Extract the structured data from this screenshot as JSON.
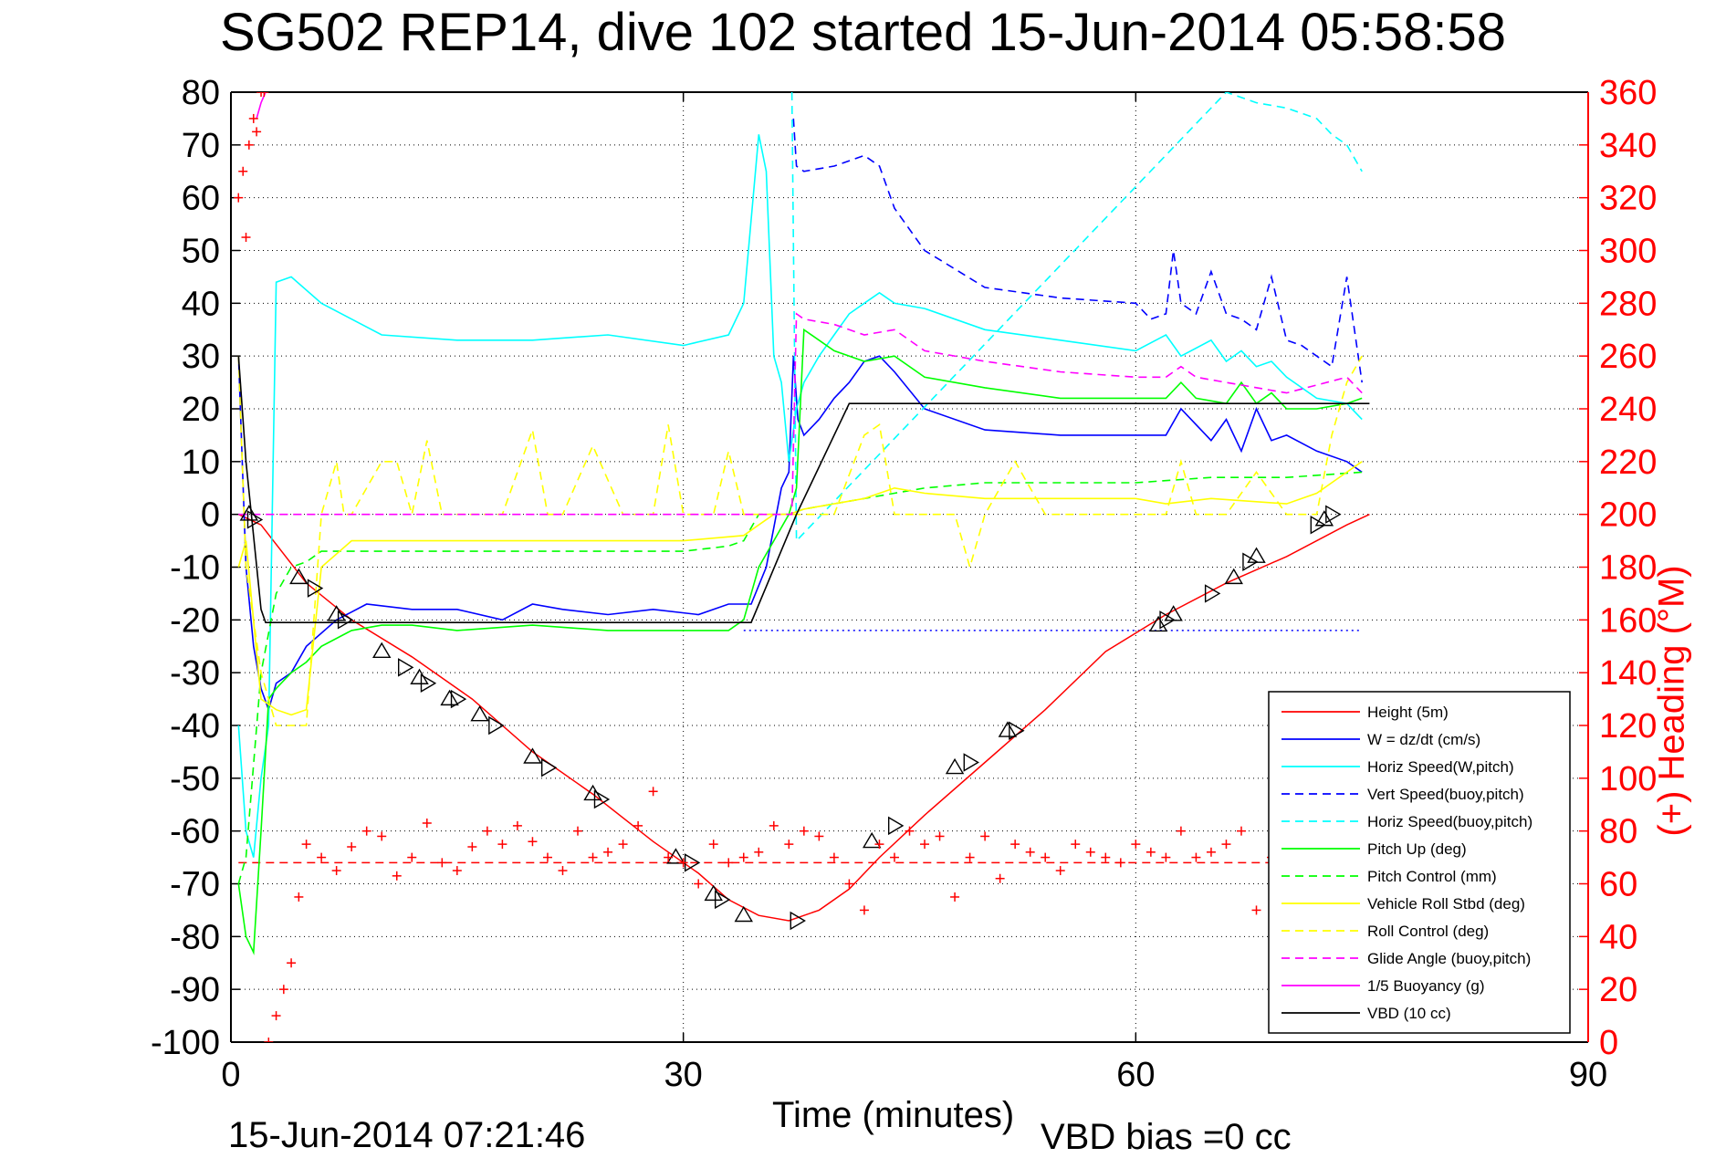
{
  "chart_data": {
    "type": "line",
    "title": "SG502 REP14, dive 102 started 15-Jun-2014 05:58:58",
    "xlabel": "Time (minutes)",
    "ylabel_left": "",
    "ylabel_right": "(+) Heading (°M)",
    "footer_left": "15-Jun-2014 07:21:46",
    "footer_right": "VBD bias =0 cc",
    "xlim": [
      0,
      90
    ],
    "ylim": [
      -100,
      80
    ],
    "y2lim": [
      0,
      360
    ],
    "xticks": [
      "0",
      "30",
      "60",
      "90"
    ],
    "xtick_values": [
      0,
      30,
      60,
      90
    ],
    "yticks": [
      "80",
      "70",
      "60",
      "50",
      "40",
      "30",
      "20",
      "10",
      "0",
      "-10",
      "-20",
      "-30",
      "-40",
      "-50",
      "-60",
      "-70",
      "-80",
      "-90",
      "-100"
    ],
    "ytick_values": [
      80,
      70,
      60,
      50,
      40,
      30,
      20,
      10,
      0,
      -10,
      -20,
      -30,
      -40,
      -50,
      -60,
      -70,
      -80,
      -90,
      -100
    ],
    "y2ticks": [
      "360",
      "340",
      "320",
      "300",
      "280",
      "260",
      "240",
      "220",
      "200",
      "180",
      "160",
      "140",
      "120",
      "100",
      "80",
      "60",
      "40",
      "20",
      "0"
    ],
    "y2tick_values": [
      360,
      340,
      320,
      300,
      280,
      260,
      240,
      220,
      200,
      180,
      160,
      140,
      120,
      100,
      80,
      60,
      40,
      20,
      0
    ],
    "grid": true,
    "legend_position": "bottom-right",
    "colors": {
      "axis": "#000000",
      "right_axis": "#ff0000",
      "grid": "#000000"
    },
    "series": [
      {
        "name": "Height (5m)",
        "color": "#ff0000",
        "dash": "solid",
        "x": [
          0.5,
          2,
          5,
          8,
          12,
          16,
          20,
          24,
          28,
          31,
          33,
          35,
          37,
          39,
          41,
          43,
          46,
          50,
          54,
          58,
          62,
          66,
          70,
          74,
          75.5
        ],
        "y": [
          0,
          -2,
          -13,
          -20,
          -27,
          -35,
          -45,
          -53,
          -62,
          -68,
          -73,
          -76,
          -77,
          -75,
          -71,
          -65,
          -57,
          -47,
          -37,
          -26,
          -19,
          -13,
          -8,
          -2,
          0
        ]
      },
      {
        "name": "W = dz/dt (cm/s)",
        "color": "#0000ff",
        "dash": "solid",
        "x": [
          0.5,
          1,
          1.5,
          2,
          2.5,
          3,
          4,
          5,
          7,
          9,
          12,
          15,
          18,
          20,
          22,
          25,
          28,
          31,
          33,
          34.5,
          35.5,
          36.5,
          37,
          37.3,
          37.6,
          38,
          39,
          40,
          41,
          42,
          43,
          44,
          46,
          50,
          55,
          60,
          62,
          63,
          65,
          66,
          67,
          68,
          69,
          70,
          72,
          74,
          75
        ],
        "y": [
          30,
          -10,
          -25,
          -33,
          -37,
          -32,
          -30,
          -25,
          -20,
          -17,
          -18,
          -18,
          -20,
          -17,
          -18,
          -19,
          -18,
          -19,
          -17,
          -17,
          -10,
          5,
          8,
          30,
          18,
          15,
          18,
          22,
          25,
          29,
          30,
          27,
          20,
          16,
          15,
          15,
          15,
          20,
          14,
          18,
          12,
          20,
          14,
          15,
          12,
          10,
          8
        ]
      },
      {
        "name": "Horiz Speed(W,pitch)",
        "color": "#00ffff",
        "dash": "solid",
        "x": [
          0.5,
          1,
          1.5,
          2,
          2.5,
          3,
          4,
          6,
          8,
          10,
          15,
          20,
          25,
          30,
          33,
          34,
          35,
          35.5,
          36,
          36.5,
          37,
          37.5,
          38,
          39,
          40,
          41,
          42,
          43,
          44,
          46,
          50,
          55,
          60,
          62,
          63,
          65,
          66,
          67,
          68,
          69,
          70,
          72,
          74,
          75
        ],
        "y": [
          -40,
          -60,
          -65,
          -50,
          -40,
          44,
          45,
          40,
          37,
          34,
          33,
          33,
          34,
          32,
          34,
          40,
          72,
          65,
          30,
          25,
          10,
          20,
          25,
          30,
          34,
          38,
          40,
          42,
          40,
          39,
          35,
          33,
          31,
          34,
          30,
          33,
          29,
          31,
          28,
          29,
          26,
          22,
          21,
          18
        ]
      },
      {
        "name": "Vert Speed(buoy,pitch)",
        "color": "#0000ff",
        "dash": "dashed",
        "x": [
          37.3,
          37.5,
          38,
          40,
          42,
          43,
          44,
          46,
          50,
          55,
          60,
          61,
          62,
          62.5,
          63,
          64,
          65,
          66,
          67,
          68,
          69,
          70,
          71,
          72,
          73,
          74,
          75
        ],
        "y": [
          75,
          66,
          65,
          66,
          68,
          66,
          58,
          50,
          43,
          41,
          40,
          37,
          38,
          50,
          40,
          38,
          46,
          38,
          37,
          35,
          45,
          33,
          32,
          30,
          28,
          45,
          25
        ]
      },
      {
        "name": "Horiz Speed(buoy,pitch)",
        "color": "#00ffff",
        "dash": "dashed",
        "x": [
          37.2,
          37.5,
          66,
          68,
          70,
          72,
          73,
          74,
          75
        ],
        "y": [
          80,
          -5,
          80,
          78,
          77,
          75,
          72,
          70,
          65
        ]
      },
      {
        "name": "Pitch Up (deg)",
        "color": "#00ff00",
        "dash": "solid",
        "x": [
          0.5,
          1,
          1.5,
          2,
          2.5,
          3,
          4,
          5,
          6,
          8,
          10,
          12,
          15,
          20,
          25,
          30,
          33,
          34,
          35,
          36,
          37,
          37.5,
          38,
          40,
          42,
          44,
          46,
          50,
          55,
          60,
          62,
          63,
          64,
          66,
          67,
          68,
          69,
          70,
          72,
          74,
          75
        ],
        "y": [
          -70,
          -80,
          -83,
          -60,
          -35,
          -33,
          -30,
          -28,
          -25,
          -22,
          -21,
          -21,
          -22,
          -21,
          -22,
          -22,
          -22,
          -20,
          -10,
          -5,
          0,
          5,
          35,
          31,
          29,
          30,
          26,
          24,
          22,
          22,
          22,
          25,
          22,
          21,
          25,
          21,
          23,
          20,
          20,
          21,
          22
        ]
      },
      {
        "name": "Pitch Control (mm)",
        "color": "#00ff00",
        "dash": "dashed",
        "x": [
          0.5,
          1,
          2,
          3,
          4,
          5,
          6,
          8,
          10,
          15,
          20,
          25,
          30,
          33,
          34,
          35,
          36,
          37,
          38,
          40,
          42,
          44,
          46,
          50,
          55,
          60,
          65,
          70,
          75
        ],
        "y": [
          -70,
          -65,
          -30,
          -15,
          -10,
          -9,
          -7,
          -7,
          -7,
          -7,
          -7,
          -7,
          -7,
          -6,
          -5,
          0,
          0,
          0,
          1,
          2,
          3,
          4,
          5,
          6,
          6,
          6,
          7,
          7,
          8
        ]
      },
      {
        "name": "Vehicle Roll Stbd (deg)",
        "color": "#ffff00",
        "dash": "solid",
        "x": [
          0.5,
          1,
          2,
          3,
          4,
          5,
          6,
          8,
          10,
          15,
          20,
          25,
          30,
          34,
          35,
          36,
          37,
          38,
          40,
          42,
          44,
          46,
          50,
          55,
          60,
          62,
          65,
          70,
          72,
          74,
          75
        ],
        "y": [
          -10,
          -5,
          -35,
          -37,
          -38,
          -37,
          -10,
          -5,
          -5,
          -5,
          -5,
          -5,
          -5,
          -4,
          -2,
          0,
          0,
          1,
          2,
          3,
          5,
          4,
          3,
          3,
          3,
          2,
          3,
          2,
          4,
          8,
          10
        ]
      },
      {
        "name": "Roll Control (deg)",
        "color": "#ffff00",
        "dash": "dashed",
        "x": [
          0.5,
          1,
          1.5,
          2,
          3,
          5,
          6,
          7,
          7.5,
          8,
          10,
          11,
          12,
          13,
          14,
          15,
          16,
          18,
          20,
          21,
          22,
          24,
          26,
          28,
          29,
          30,
          32,
          33,
          34,
          35,
          36,
          38,
          40,
          42,
          43,
          44,
          46,
          48,
          49,
          50,
          52,
          54,
          56,
          60,
          62,
          63,
          64,
          66,
          68,
          70,
          72,
          73,
          74,
          75
        ],
        "y": [
          30,
          -10,
          -20,
          -30,
          -40,
          -40,
          0,
          10,
          0,
          0,
          10,
          10,
          0,
          14,
          0,
          0,
          0,
          0,
          16,
          0,
          0,
          13,
          0,
          0,
          17,
          0,
          0,
          12,
          0,
          0,
          0,
          0,
          0,
          15,
          17,
          0,
          0,
          0,
          -10,
          0,
          10,
          0,
          0,
          0,
          0,
          10,
          0,
          0,
          8,
          0,
          0,
          15,
          25,
          30
        ]
      },
      {
        "name": "Glide Angle (buoy,pitch)",
        "color": "#ff00ff",
        "dash": "dashed",
        "x": [
          0.5,
          37.2,
          37.5,
          38,
          40,
          42,
          44,
          46,
          50,
          55,
          60,
          62,
          63,
          64,
          66,
          70,
          74,
          75
        ],
        "y": [
          0,
          0,
          38,
          37,
          36,
          34,
          35,
          31,
          29,
          27,
          26,
          26,
          28,
          26,
          25,
          23,
          26,
          23
        ]
      },
      {
        "name": "1/5 Buoyancy (g)",
        "color": "#ff00ff",
        "dash": "solid",
        "x": [
          1.7,
          2,
          2.3
        ],
        "y": [
          75,
          78,
          80
        ]
      },
      {
        "name": "VBD (10 cc)",
        "color": "#000000",
        "dash": "solid",
        "x": [
          0.5,
          1,
          2,
          2.3,
          10,
          20,
          30,
          34.5,
          37.5,
          41,
          50,
          60,
          70,
          75.5
        ],
        "y": [
          30,
          10,
          -18,
          -20.5,
          -20.5,
          -20.5,
          -20.5,
          -20.5,
          0,
          21,
          21,
          21,
          21,
          21
        ]
      }
    ],
    "extra_lines": [
      {
        "label": "Glide Angle zero line",
        "color": "#ff00ff",
        "dash": "dashed",
        "x": [
          0.5,
          37
        ],
        "y": [
          0,
          0
        ]
      },
      {
        "label": "Horizontal dotted",
        "color": "#0000ff",
        "dash": "dotted",
        "x": [
          34,
          75
        ],
        "y": [
          -22,
          -22
        ]
      },
      {
        "label": "Heading mean",
        "color": "#ff0000",
        "dash": "dashed",
        "x": [
          0.5,
          75.5
        ],
        "y": [
          -66,
          -66
        ]
      }
    ],
    "heading_series": {
      "name": "(+) Heading (°M)",
      "color": "#ff0000",
      "marker": "+",
      "x": [
        0.5,
        0.8,
        1.0,
        1.2,
        1.5,
        1.7,
        2.0,
        2.2,
        2.5,
        3,
        3.5,
        4,
        4.5,
        5,
        6,
        7,
        8,
        9,
        10,
        11,
        12,
        13,
        14,
        15,
        16,
        17,
        18,
        19,
        20,
        21,
        22,
        23,
        24,
        25,
        26,
        27,
        28,
        29,
        30,
        31,
        32,
        33,
        34,
        35,
        36,
        37,
        38,
        39,
        40,
        41,
        42,
        43,
        44,
        45,
        46,
        47,
        48,
        49,
        50,
        51,
        52,
        53,
        54,
        55,
        56,
        57,
        58,
        59,
        60,
        61,
        62,
        63,
        64,
        65,
        66,
        67,
        68,
        69,
        70
      ],
      "y": [
        320,
        330,
        305,
        340,
        350,
        345,
        360,
        360,
        0,
        10,
        20,
        30,
        55,
        75,
        70,
        65,
        74,
        80,
        78,
        63,
        70,
        83,
        68,
        65,
        74,
        80,
        75,
        82,
        76,
        70,
        65,
        80,
        70,
        72,
        75,
        82,
        95,
        70,
        68,
        60,
        75,
        68,
        70,
        72,
        82,
        75,
        80,
        78,
        70,
        60,
        50,
        75,
        70,
        80,
        75,
        78,
        55,
        70,
        78,
        62,
        75,
        72,
        70,
        65,
        75,
        72,
        70,
        68,
        75,
        72,
        70,
        80,
        70,
        72,
        75,
        80,
        50,
        70,
        80
      ]
    },
    "triangle_markers": {
      "color": "#000000",
      "x": [
        1.2,
        1.5,
        4.5,
        5.5,
        7,
        7.5,
        10,
        11.5,
        12.5,
        13,
        14.5,
        15,
        16.5,
        17.5,
        20,
        21,
        24,
        24.5,
        29.5,
        30.5,
        32,
        32.5,
        34,
        37.5,
        42.5,
        44,
        48,
        49,
        51.5,
        52,
        61.5,
        62,
        62.5,
        65,
        66.5,
        67.5,
        68,
        72,
        72.5,
        73
      ],
      "y": [
        0,
        -1,
        -12,
        -14,
        -19,
        -20,
        -26,
        -29,
        -31,
        -32,
        -35,
        -35,
        -38,
        -40,
        -46,
        -48,
        -53,
        -54,
        -65,
        -66,
        -72,
        -73,
        -76,
        -77,
        -62,
        -59,
        -48,
        -47,
        -41,
        -41,
        -21,
        -20,
        -19,
        -15,
        -12,
        -9,
        -8,
        -2,
        -1,
        0
      ]
    }
  }
}
